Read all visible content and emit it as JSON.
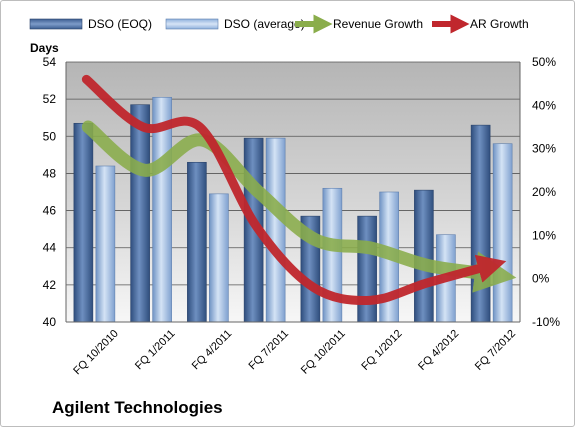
{
  "chart_data": {
    "type": "bar",
    "categories": [
      "FQ 10/2010",
      "FQ 1/2011",
      "FQ 4/2011",
      "FQ 7/2011",
      "FQ 10/2011",
      "FQ 1/2012",
      "FQ 4/2012",
      "FQ 7/2012"
    ],
    "series": [
      {
        "name": "DSO (EOQ)",
        "type": "bar",
        "axis": "left",
        "values": [
          50.7,
          51.7,
          48.6,
          49.9,
          45.7,
          45.7,
          47.1,
          50.6
        ],
        "color": "#4a6fa5"
      },
      {
        "name": "DSO (average)",
        "type": "bar",
        "axis": "left",
        "values": [
          48.4,
          52.1,
          46.9,
          49.9,
          47.2,
          47.0,
          44.7,
          49.6
        ],
        "color": "#95b3d7"
      },
      {
        "name": "Revenue Growth",
        "type": "line",
        "axis": "right",
        "values": [
          35,
          25,
          32,
          20,
          9,
          7,
          3,
          1
        ],
        "color": "#8aad4b"
      },
      {
        "name": "AR Growth",
        "type": "line",
        "axis": "right",
        "values": [
          46,
          35,
          35,
          12,
          -2,
          -5,
          -1,
          3
        ],
        "color": "#c0272d"
      }
    ],
    "y_left": {
      "label": "Days",
      "range": [
        40,
        54
      ],
      "ticks": [
        "40",
        "42",
        "44",
        "46",
        "48",
        "50",
        "52",
        "54"
      ]
    },
    "y_right": {
      "range": [
        -10,
        50
      ],
      "ticks": [
        "-10%",
        "0%",
        "10%",
        "20%",
        "30%",
        "40%",
        "50%"
      ]
    },
    "grid": true,
    "legend_position": "top"
  },
  "footer": {
    "company": "Agilent Technologies"
  }
}
